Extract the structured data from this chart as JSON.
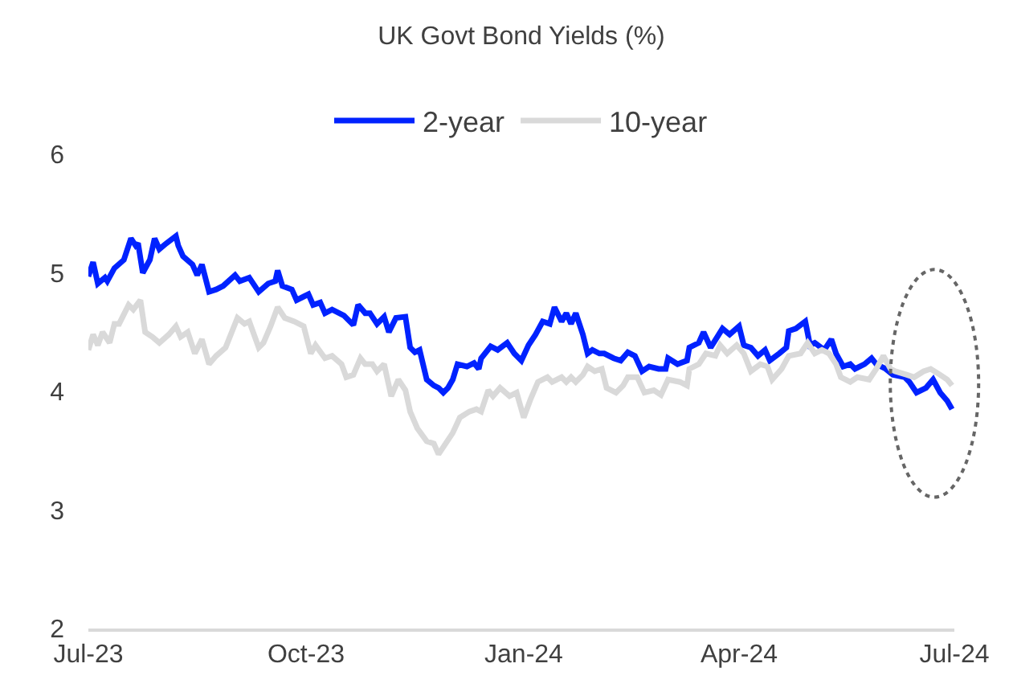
{
  "chart_data": {
    "type": "line",
    "title": "UK Govt Bond Yields (%)",
    "series": [
      {
        "name": "2-year",
        "color": "#0022ff",
        "x": [
          "2023-07-01",
          "2023-07-03",
          "2023-07-05",
          "2023-07-08",
          "2023-07-09",
          "2023-07-12",
          "2023-07-16",
          "2023-07-19",
          "2023-07-21",
          "2023-07-22",
          "2023-07-24",
          "2023-07-27",
          "2023-07-29",
          "2023-07-31",
          "2023-08-03",
          "2023-08-07",
          "2023-08-08",
          "2023-08-10",
          "2023-08-14",
          "2023-08-16",
          "2023-08-18",
          "2023-08-21",
          "2023-08-24",
          "2023-08-27",
          "2023-09-01",
          "2023-09-03",
          "2023-09-07",
          "2023-09-11",
          "2023-09-15",
          "2023-09-18",
          "2023-09-19",
          "2023-09-21",
          "2023-09-25",
          "2023-09-27",
          "2023-09-30",
          "2023-10-02",
          "2023-10-04",
          "2023-10-07",
          "2023-10-09",
          "2023-10-12",
          "2023-10-17",
          "2023-10-21",
          "2023-10-23",
          "2023-10-26",
          "2023-10-28",
          "2023-10-31",
          "2023-11-03",
          "2023-11-05",
          "2023-11-08",
          "2023-11-12",
          "2023-11-14",
          "2023-11-16",
          "2023-11-18",
          "2023-11-21",
          "2023-11-24",
          "2023-11-26",
          "2023-11-28",
          "2023-11-30",
          "2023-12-02",
          "2023-12-04",
          "2023-12-08",
          "2023-12-11",
          "2023-12-13",
          "2023-12-14",
          "2023-12-18",
          "2023-12-21",
          "2023-12-25",
          "2023-12-28",
          "2023-12-31",
          "2024-01-03",
          "2024-01-06",
          "2024-01-09",
          "2024-01-12",
          "2024-01-14",
          "2024-01-17",
          "2024-01-19",
          "2024-01-21",
          "2024-01-23",
          "2024-01-26",
          "2024-01-28",
          "2024-01-30",
          "2024-02-02",
          "2024-02-04",
          "2024-02-08",
          "2024-02-11",
          "2024-02-14",
          "2024-02-17",
          "2024-02-20",
          "2024-02-23",
          "2024-02-27",
          "2024-03-01",
          "2024-03-02",
          "2024-03-06",
          "2024-03-10",
          "2024-03-11",
          "2024-03-15",
          "2024-03-17",
          "2024-03-20",
          "2024-03-25",
          "2024-03-28",
          "2024-04-01",
          "2024-04-03",
          "2024-04-06",
          "2024-04-09",
          "2024-04-12",
          "2024-04-14",
          "2024-04-18",
          "2024-04-21",
          "2024-04-22",
          "2024-04-25",
          "2024-04-29",
          "2024-05-01",
          "2024-05-03",
          "2024-05-07",
          "2024-05-10",
          "2024-05-12",
          "2024-05-15",
          "2024-05-18",
          "2024-05-20",
          "2024-05-24",
          "2024-05-27",
          "2024-05-29",
          "2024-06-02",
          "2024-06-05",
          "2024-06-10",
          "2024-06-12",
          "2024-06-15",
          "2024-06-19",
          "2024-06-22",
          "2024-06-25",
          "2024-06-28",
          "2024-06-30"
        ],
        "values": [
          4.97,
          5.09,
          4.91,
          4.96,
          4.93,
          5.04,
          5.11,
          5.29,
          5.23,
          5.25,
          5.0,
          5.11,
          5.29,
          5.2,
          5.25,
          5.31,
          5.23,
          5.14,
          5.07,
          4.98,
          5.07,
          4.84,
          4.86,
          4.89,
          4.98,
          4.93,
          4.96,
          4.84,
          4.91,
          4.93,
          5.02,
          4.89,
          4.86,
          4.77,
          4.8,
          4.82,
          4.73,
          4.75,
          4.66,
          4.69,
          4.64,
          4.56,
          4.73,
          4.66,
          4.66,
          4.57,
          4.63,
          4.5,
          4.62,
          4.63,
          4.37,
          4.33,
          4.35,
          4.1,
          4.05,
          4.03,
          3.99,
          4.03,
          4.1,
          4.23,
          4.21,
          4.24,
          4.19,
          4.28,
          4.38,
          4.35,
          4.41,
          4.32,
          4.26,
          4.39,
          4.48,
          4.59,
          4.57,
          4.71,
          4.59,
          4.66,
          4.57,
          4.66,
          4.48,
          4.32,
          4.35,
          4.32,
          4.32,
          4.28,
          4.26,
          4.33,
          4.3,
          4.17,
          4.21,
          4.19,
          4.19,
          4.28,
          4.23,
          4.26,
          4.37,
          4.41,
          4.5,
          4.37,
          4.53,
          4.48,
          4.55,
          4.39,
          4.37,
          4.3,
          4.35,
          4.26,
          4.32,
          4.37,
          4.51,
          4.53,
          4.59,
          4.39,
          4.41,
          4.35,
          4.44,
          4.32,
          4.21,
          4.23,
          4.19,
          4.23,
          4.28,
          4.23,
          4.19,
          4.14,
          4.12,
          4.08,
          3.99,
          4.03,
          4.1,
          3.99,
          3.92,
          3.85
        ]
      },
      {
        "name": "10-year",
        "color": "#d9d9d9",
        "x": [
          "2023-07-01",
          "2023-07-03",
          "2023-07-05",
          "2023-07-07",
          "2023-07-10",
          "2023-07-12",
          "2023-07-14",
          "2023-07-18",
          "2023-07-20",
          "2023-07-23",
          "2023-07-25",
          "2023-07-28",
          "2023-07-31",
          "2023-08-04",
          "2023-08-07",
          "2023-08-09",
          "2023-08-12",
          "2023-08-15",
          "2023-08-18",
          "2023-08-21",
          "2023-08-24",
          "2023-08-28",
          "2023-09-02",
          "2023-09-05",
          "2023-09-07",
          "2023-09-11",
          "2023-09-13",
          "2023-09-16",
          "2023-09-19",
          "2023-09-22",
          "2023-09-26",
          "2023-09-30",
          "2023-10-03",
          "2023-10-05",
          "2023-10-09",
          "2023-10-12",
          "2023-10-16",
          "2023-10-18",
          "2023-10-21",
          "2023-10-24",
          "2023-10-26",
          "2023-10-29",
          "2023-10-31",
          "2023-11-03",
          "2023-11-06",
          "2023-11-09",
          "2023-11-12",
          "2023-11-14",
          "2023-11-17",
          "2023-11-21",
          "2023-11-24",
          "2023-11-26",
          "2023-11-29",
          "2023-12-02",
          "2023-12-05",
          "2023-12-09",
          "2023-12-12",
          "2023-12-14",
          "2023-12-17",
          "2023-12-19",
          "2023-12-22",
          "2023-12-26",
          "2023-12-29",
          "2024-01-01",
          "2024-01-04",
          "2024-01-07",
          "2024-01-11",
          "2024-01-13",
          "2024-01-17",
          "2024-01-19",
          "2024-01-21",
          "2024-01-23",
          "2024-01-26",
          "2024-01-28",
          "2024-01-31",
          "2024-02-03",
          "2024-02-05",
          "2024-02-09",
          "2024-02-12",
          "2024-02-14",
          "2024-02-18",
          "2024-02-21",
          "2024-02-25",
          "2024-02-28",
          "2024-03-02",
          "2024-03-07",
          "2024-03-10",
          "2024-03-11",
          "2024-03-15",
          "2024-03-18",
          "2024-03-22",
          "2024-03-24",
          "2024-03-27",
          "2024-03-31",
          "2024-04-03",
          "2024-04-06",
          "2024-04-10",
          "2024-04-13",
          "2024-04-15",
          "2024-04-19",
          "2024-04-22",
          "2024-04-27",
          "2024-04-30",
          "2024-05-03",
          "2024-05-06",
          "2024-05-09",
          "2024-05-12",
          "2024-05-14",
          "2024-05-18",
          "2024-05-21",
          "2024-05-26",
          "2024-05-29",
          "2024-06-01",
          "2024-06-04",
          "2024-06-06",
          "2024-06-11",
          "2024-06-14",
          "2024-06-18",
          "2024-06-21",
          "2024-06-25",
          "2024-06-28",
          "2024-06-30"
        ],
        "values": [
          4.35,
          4.48,
          4.39,
          4.5,
          4.41,
          4.57,
          4.57,
          4.73,
          4.69,
          4.77,
          4.5,
          4.46,
          4.41,
          4.48,
          4.55,
          4.46,
          4.5,
          4.32,
          4.44,
          4.23,
          4.3,
          4.37,
          4.62,
          4.57,
          4.59,
          4.37,
          4.41,
          4.55,
          4.71,
          4.62,
          4.59,
          4.55,
          4.32,
          4.39,
          4.28,
          4.3,
          4.23,
          4.12,
          4.14,
          4.28,
          4.23,
          4.23,
          4.17,
          4.23,
          3.96,
          4.1,
          4.01,
          3.83,
          3.69,
          3.58,
          3.56,
          3.47,
          3.56,
          3.65,
          3.78,
          3.83,
          3.85,
          3.83,
          4.01,
          3.96,
          4.03,
          3.96,
          3.99,
          3.78,
          3.94,
          4.08,
          4.12,
          4.08,
          4.12,
          4.08,
          4.12,
          4.08,
          4.14,
          4.21,
          4.17,
          4.19,
          4.03,
          3.99,
          4.05,
          4.12,
          4.12,
          3.99,
          4.01,
          3.97,
          4.1,
          4.08,
          4.05,
          4.19,
          4.23,
          4.32,
          4.3,
          4.39,
          4.32,
          4.39,
          4.32,
          4.17,
          4.23,
          4.21,
          4.1,
          4.19,
          4.3,
          4.32,
          4.41,
          4.32,
          4.35,
          4.32,
          4.23,
          4.12,
          4.08,
          4.12,
          4.1,
          4.19,
          4.3,
          4.19,
          4.17,
          4.14,
          4.12,
          4.17,
          4.19,
          4.14,
          4.1,
          4.05
        ]
      }
    ],
    "xlim": [
      "2023-07-01",
      "2024-07-01"
    ],
    "xticks": [
      {
        "value": "2023-07-01",
        "label": "Jul-23"
      },
      {
        "value": "2023-10-01",
        "label": "Oct-23"
      },
      {
        "value": "2024-01-01",
        "label": "Jan-24"
      },
      {
        "value": "2024-04-01",
        "label": "Apr-24"
      },
      {
        "value": "2024-07-01",
        "label": "Jul-24"
      }
    ],
    "ylim": [
      2,
      6
    ],
    "yticks": [
      2,
      3,
      4,
      5,
      6
    ],
    "grid": false,
    "legend": "top",
    "marker": "none",
    "line_style": "solid"
  }
}
